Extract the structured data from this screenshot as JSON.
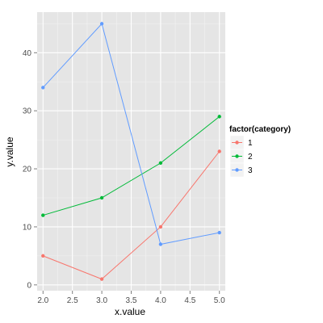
{
  "chart_data": {
    "type": "line",
    "xlabel": "x.value",
    "ylabel": "y.value",
    "xlim": [
      1.9,
      5.1
    ],
    "ylim": [
      -1,
      47
    ],
    "x_ticks": [
      2.0,
      2.5,
      3.0,
      3.5,
      4.0,
      4.5,
      5.0
    ],
    "x_tick_labels": [
      "2.0",
      "2.5",
      "3.0",
      "3.5",
      "4.0",
      "4.5",
      "5.0"
    ],
    "y_ticks": [
      0,
      10,
      20,
      30,
      40
    ],
    "y_tick_labels": [
      "0",
      "10",
      "20",
      "30",
      "40"
    ],
    "grid": true,
    "legend": {
      "title": "factor(category)",
      "placement": "right"
    },
    "series": [
      {
        "name": "1",
        "color": "#F8766D",
        "x": [
          2,
          3,
          4,
          5
        ],
        "y": [
          5,
          1,
          10,
          23
        ]
      },
      {
        "name": "2",
        "color": "#00BA38",
        "x": [
          2,
          3,
          4,
          5
        ],
        "y": [
          12,
          15,
          21,
          29
        ]
      },
      {
        "name": "3",
        "color": "#619CFF",
        "x": [
          2,
          3,
          4,
          5
        ],
        "y": [
          34,
          45,
          7,
          9
        ]
      }
    ],
    "colors": {
      "panel_background": "#E5E5E5",
      "grid_major": "#FFFFFF",
      "grid_minor": "#F2F2F2",
      "tick_text": "#4D4D4D",
      "axis_title": "#000000"
    }
  }
}
